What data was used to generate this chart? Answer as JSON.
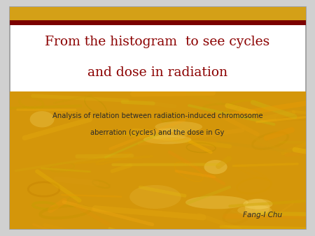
{
  "title_line1": "From the histogram  to see cycles",
  "title_line2": "and dose in radiation",
  "title_color": "#8B0000",
  "subtitle_line1": "Analysis of relation between radiation-induced chromosome",
  "subtitle_line2": "aberration (cycles) and the dose in Gy",
  "subtitle_color": "#2a2a2a",
  "author": "Fang-I Chu",
  "author_color": "#2a2a2a",
  "bg_outer": "#d0d0d0",
  "bg_slide": "#ffffff",
  "slide_border": "#999999",
  "top_stripe_color": "#D4A017",
  "dark_bar_color": "#7B0000",
  "content_bg_color": "#D4960A"
}
